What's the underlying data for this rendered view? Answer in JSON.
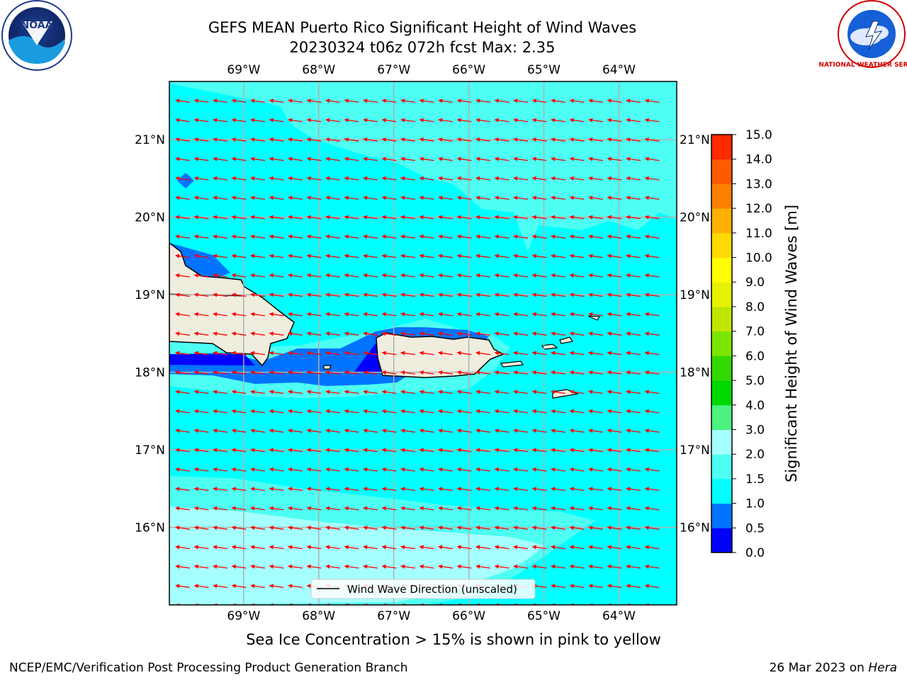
{
  "header": {
    "title_line1": "GEFS MEAN Puerto Rico Significant Height of Wind Waves",
    "title_line2": "20230324 t06z 072h fcst   Max: 2.35"
  },
  "logos": {
    "noaa_text": "NOAA",
    "nws_text": "NATIONAL WEATHER SERVICE"
  },
  "footer": {
    "caption": "Sea Ice Concentration > 15% is shown in pink to yellow",
    "left_credit": "NCEP/EMC/Verification Post Processing Product Generation Branch",
    "right_credit_date": "26 Mar 2023 on ",
    "right_credit_host": "Hera"
  },
  "colors": {
    "water_main": "#00ffff",
    "water_light": "#4dfff2",
    "water_lighter": "#a6ffff",
    "wave_deep": "#0073ff",
    "wave_deepest": "#0000ff",
    "land": "#efedde",
    "arrow": "#ff0000",
    "grid": "#b0b0b0"
  },
  "chart_data": {
    "type": "heatmap",
    "title": "GEFS MEAN Puerto Rico Significant Height of Wind Waves",
    "subtitle": "20230324 t06z 072h fcst   Max: 2.35",
    "max_value": 2.35,
    "x_ticks": [
      "69°W",
      "68°W",
      "67°W",
      "66°W",
      "65°W",
      "64°W"
    ],
    "x_tick_values": [
      -69,
      -68,
      -67,
      -66,
      -65,
      -64
    ],
    "y_ticks": [
      "21°N",
      "20°N",
      "19°N",
      "18°N",
      "17°N",
      "16°N"
    ],
    "y_tick_values": [
      21,
      20,
      19,
      18,
      17,
      16
    ],
    "xlim": [
      -69.99,
      -63.23
    ],
    "ylim": [
      15.0,
      21.75
    ],
    "grid": true,
    "colorbar": {
      "label": "Significant Height of Wind Waves [m]",
      "tick_labels": [
        "0.0",
        "0.5",
        "1.0",
        "1.5",
        "2.0",
        "3.0",
        "4.0",
        "5.0",
        "6.0",
        "7.0",
        "8.0",
        "9.0",
        "10.0",
        "11.0",
        "12.0",
        "13.0",
        "14.0",
        "15.0"
      ],
      "bounds": [
        0.0,
        0.5,
        1.0,
        1.5,
        2.0,
        3.0,
        4.0,
        5.0,
        6.0,
        7.0,
        8.0,
        9.0,
        10.0,
        11.0,
        12.0,
        13.0,
        14.0,
        15.0
      ],
      "colors": [
        "#0000ff",
        "#0073ff",
        "#00ffff",
        "#4dfff2",
        "#a6ffff",
        "#4df280",
        "#00d900",
        "#33d900",
        "#7ae600",
        "#bfe600",
        "#e6f200",
        "#ffff00",
        "#ffd900",
        "#ffb000",
        "#ff8000",
        "#ff5a00",
        "#ff2a00"
      ]
    },
    "legend": {
      "entry": "Wind Wave Direction (unscaled)",
      "placement": "lower-center"
    },
    "wind_wave_direction": "toward west-southwest"
  }
}
